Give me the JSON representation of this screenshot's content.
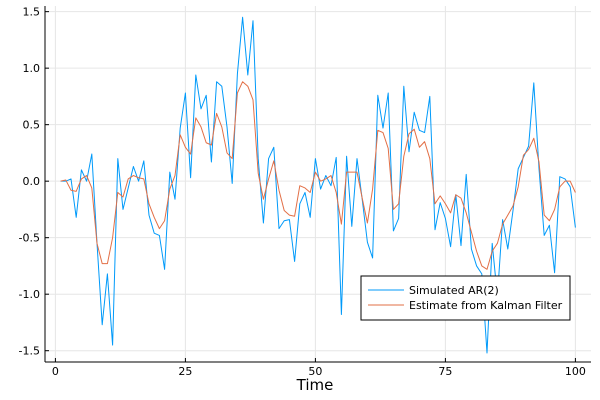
{
  "chart_data": {
    "type": "line",
    "title": "",
    "xlabel": "Time",
    "ylabel": "",
    "xlim": [
      -2,
      103
    ],
    "ylim": [
      -1.6,
      1.55
    ],
    "xticks": [
      0,
      25,
      50,
      75,
      100
    ],
    "yticks": [
      1.5,
      1.0,
      0.5,
      0.0,
      -0.5,
      -1.0,
      -1.5
    ],
    "xtick_labels": [
      "0",
      "25",
      "50",
      "75",
      "100"
    ],
    "ytick_labels": [
      "1.5",
      "1.0",
      "0.5",
      "0.0",
      "-0.5",
      "-1.0",
      "-1.5"
    ],
    "grid": true,
    "legend_position": "bottom-right",
    "x": [
      1,
      2,
      3,
      4,
      5,
      6,
      7,
      8,
      9,
      10,
      11,
      12,
      13,
      14,
      15,
      16,
      17,
      18,
      19,
      20,
      21,
      22,
      23,
      24,
      25,
      26,
      27,
      28,
      29,
      30,
      31,
      32,
      33,
      34,
      35,
      36,
      37,
      38,
      39,
      40,
      41,
      42,
      43,
      44,
      45,
      46,
      47,
      48,
      49,
      50,
      51,
      52,
      53,
      54,
      55,
      56,
      57,
      58,
      59,
      60,
      61,
      62,
      63,
      64,
      65,
      66,
      67,
      68,
      69,
      70,
      71,
      72,
      73,
      74,
      75,
      76,
      77,
      78,
      79,
      80,
      81,
      82,
      83,
      84,
      85,
      86,
      87,
      88,
      89,
      90,
      91,
      92,
      93,
      94,
      95,
      96,
      97,
      98,
      99,
      100
    ],
    "series": [
      {
        "name": "Simulated AR(2)",
        "color": "#009AFA",
        "values": [
          0.0,
          0.0,
          0.02,
          -0.32,
          0.1,
          0.0,
          0.24,
          -0.55,
          -1.27,
          -0.82,
          -1.45,
          0.2,
          -0.25,
          -0.06,
          0.13,
          0.0,
          0.18,
          -0.3,
          -0.46,
          -0.48,
          -0.78,
          0.08,
          -0.16,
          0.47,
          0.78,
          0.03,
          0.94,
          0.64,
          0.76,
          0.17,
          0.88,
          0.84,
          0.48,
          -0.02,
          0.95,
          1.45,
          0.94,
          1.42,
          0.2,
          -0.37,
          0.2,
          0.3,
          -0.42,
          -0.35,
          -0.34,
          -0.71,
          -0.2,
          -0.1,
          -0.32,
          0.2,
          -0.07,
          0.05,
          -0.04,
          0.21,
          -1.18,
          0.22,
          -0.4,
          0.2,
          -0.16,
          -0.54,
          -0.68,
          0.76,
          0.47,
          0.78,
          -0.44,
          -0.33,
          0.84,
          0.26,
          0.61,
          0.45,
          0.43,
          0.75,
          -0.43,
          -0.19,
          -0.33,
          -0.58,
          -0.12,
          -0.57,
          0.06,
          -0.6,
          -0.75,
          -0.82,
          -1.52,
          -0.55,
          -1.02,
          -0.34,
          -0.6,
          -0.26,
          0.11,
          0.21,
          0.31,
          0.87,
          0.11,
          -0.48,
          -0.39,
          -0.81,
          0.04,
          0.02,
          -0.05,
          -0.41
        ]
      },
      {
        "name": "Estimate from Kalman Filter",
        "color": "#E26F46",
        "values": [
          0.0,
          0.01,
          -0.08,
          -0.09,
          0.02,
          0.05,
          -0.06,
          -0.55,
          -0.73,
          -0.73,
          -0.5,
          -0.1,
          -0.14,
          0.02,
          0.05,
          0.03,
          0.02,
          -0.2,
          -0.32,
          -0.42,
          -0.35,
          -0.07,
          0.05,
          0.41,
          0.3,
          0.24,
          0.56,
          0.48,
          0.34,
          0.32,
          0.6,
          0.48,
          0.25,
          0.2,
          0.78,
          0.88,
          0.84,
          0.72,
          0.07,
          -0.16,
          0.02,
          0.18,
          -0.08,
          -0.26,
          -0.3,
          -0.31,
          -0.04,
          -0.06,
          -0.1,
          0.08,
          0.0,
          0.02,
          0.05,
          -0.1,
          -0.38,
          0.08,
          0.08,
          0.08,
          -0.15,
          -0.37,
          -0.07,
          0.45,
          0.43,
          0.29,
          -0.25,
          -0.2,
          0.22,
          0.42,
          0.46,
          0.3,
          0.35,
          0.2,
          -0.2,
          -0.13,
          -0.2,
          -0.28,
          -0.12,
          -0.15,
          -0.28,
          -0.45,
          -0.62,
          -0.75,
          -0.78,
          -0.62,
          -0.55,
          -0.38,
          -0.3,
          -0.22,
          -0.05,
          0.23,
          0.28,
          0.38,
          0.17,
          -0.3,
          -0.35,
          -0.25,
          -0.05,
          0.0,
          0.0,
          -0.1
        ]
      }
    ]
  }
}
